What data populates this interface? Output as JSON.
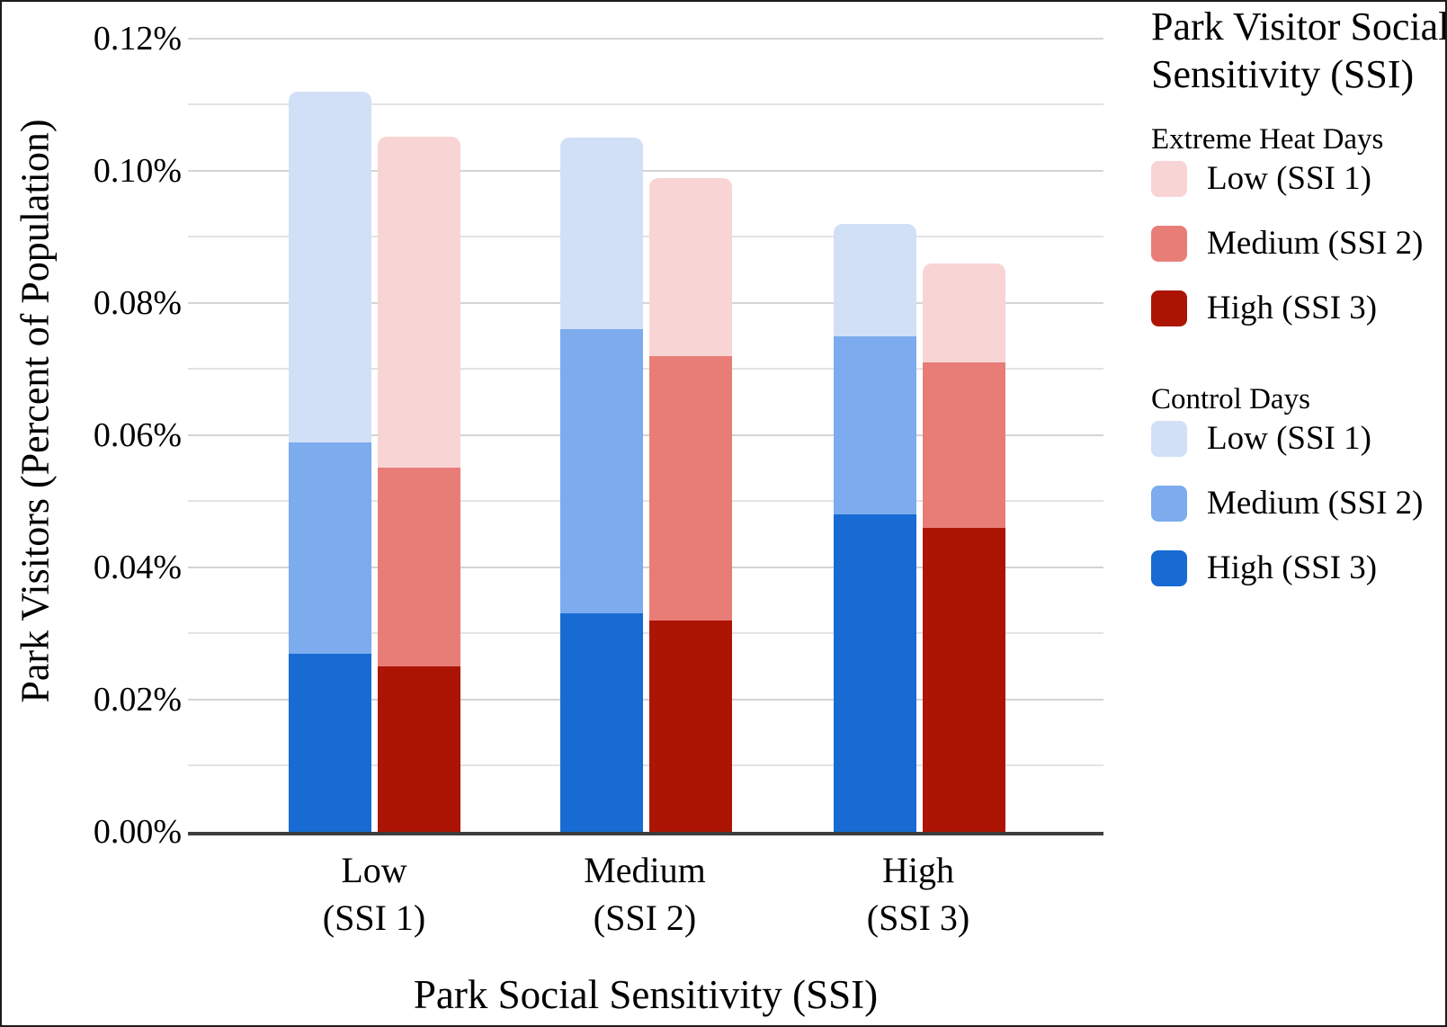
{
  "chart_data": {
    "type": "bar",
    "stacked": true,
    "grouped": true,
    "xlabel": "Park Social Sensitivity (SSI)",
    "ylabel": "Park Visitors (Percent of Population)",
    "categories": [
      "Low\n(SSI 1)",
      "Medium\n(SSI 2)",
      "High\n(SSI 3)"
    ],
    "y_axis": {
      "min": 0,
      "max": 0.12,
      "major_step": 0.02,
      "minor_step": 0.01,
      "unit": "%",
      "ticks": [
        "0.00%",
        "0.02%",
        "0.04%",
        "0.06%",
        "0.08%",
        "0.10%",
        "0.12%"
      ],
      "grid": true
    },
    "stack_order_bottom_to_top": [
      "High (SSI 3)",
      "Medium (SSI 2)",
      "Low (SSI 1)"
    ],
    "bar_order_left_to_right": [
      "Control Days",
      "Extreme Heat Days"
    ],
    "series": [
      {
        "name": "Control Days",
        "segments": [
          {
            "label": "High (SSI 3)",
            "color": "#176bd3",
            "values": [
              0.027,
              0.033,
              0.048
            ]
          },
          {
            "label": "Medium (SSI 2)",
            "color": "#7cabee",
            "values": [
              0.032,
              0.043,
              0.027
            ]
          },
          {
            "label": "Low (SSI 1)",
            "color": "#d2e0f7",
            "values": [
              0.053,
              0.029,
              0.017
            ]
          }
        ],
        "totals": [
          0.112,
          0.105,
          0.092
        ]
      },
      {
        "name": "Extreme Heat Days",
        "segments": [
          {
            "label": "High (SSI 3)",
            "color": "#ac1503",
            "values": [
              0.025,
              0.032,
              0.046
            ]
          },
          {
            "label": "Medium (SSI 2)",
            "color": "#e87d78",
            "values": [
              0.03,
              0.04,
              0.025
            ]
          },
          {
            "label": "Low (SSI 1)",
            "color": "#f8d5d4",
            "values": [
              0.05,
              0.027,
              0.015
            ]
          }
        ],
        "totals": [
          0.105,
          0.099,
          0.086
        ]
      }
    ]
  },
  "legend": {
    "title": "Park Visitor Social Sensitivity (SSI)",
    "groups": [
      {
        "header": "Extreme Heat Days",
        "items": [
          {
            "label": "Low (SSI 1)",
            "color": "#f8d5d4"
          },
          {
            "label": "Medium (SSI 2)",
            "color": "#e87d78"
          },
          {
            "label": "High (SSI 3)",
            "color": "#ac1503"
          }
        ]
      },
      {
        "header": "Control Days",
        "items": [
          {
            "label": "Low (SSI 1)",
            "color": "#d2e0f7"
          },
          {
            "label": "Medium (SSI 2)",
            "color": "#7cabee"
          },
          {
            "label": "High (SSI 3)",
            "color": "#176bd3"
          }
        ]
      }
    ]
  },
  "colors": {
    "gridline_major": "#d4d4d4",
    "gridline_minor": "#e3e3e3",
    "axis_line": "#3d3d3d",
    "text": "#000000",
    "background": "#ffffff"
  }
}
